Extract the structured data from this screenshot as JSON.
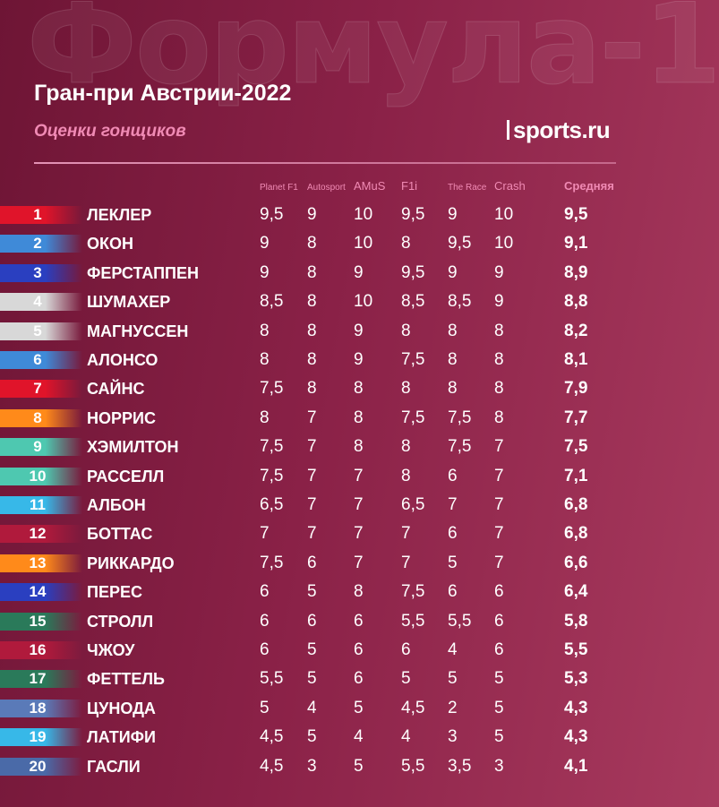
{
  "background_title": "Формула-1",
  "header": {
    "title": "Гран-при Австрии-2022",
    "subtitle": "Оценки гонщиков",
    "logo": "sports.ru"
  },
  "columns": [
    "Planet F1",
    "Autosport",
    "AMuS",
    "F1i",
    "The Race",
    "Crash",
    "Средняя"
  ],
  "rows": [
    {
      "pos": "1",
      "name": "ЛЕКЛЕР",
      "scores": [
        "9,5",
        "9",
        "10",
        "9,5",
        "9",
        "10"
      ],
      "avg": "9,5",
      "color": "#e0142a"
    },
    {
      "pos": "2",
      "name": "ОКОН",
      "scores": [
        "9",
        "8",
        "10",
        "8",
        "9,5",
        "10"
      ],
      "avg": "9,1",
      "color": "#3f8ad8"
    },
    {
      "pos": "3",
      "name": "ФЕРСТАППЕН",
      "scores": [
        "9",
        "8",
        "9",
        "9,5",
        "9",
        "9"
      ],
      "avg": "8,9",
      "color": "#2a3fc0"
    },
    {
      "pos": "4",
      "name": "ШУМАХЕР",
      "scores": [
        "8,5",
        "8",
        "10",
        "8,5",
        "8,5",
        "9"
      ],
      "avg": "8,8",
      "color": "#d8d8d8"
    },
    {
      "pos": "5",
      "name": "МАГНУССЕН",
      "scores": [
        "8",
        "8",
        "9",
        "8",
        "8",
        "8"
      ],
      "avg": "8,2",
      "color": "#d8d8d8"
    },
    {
      "pos": "6",
      "name": "АЛОНСО",
      "scores": [
        "8",
        "8",
        "9",
        "7,5",
        "8",
        "8"
      ],
      "avg": "8,1",
      "color": "#3f8ad8"
    },
    {
      "pos": "7",
      "name": "САЙНС",
      "scores": [
        "7,5",
        "8",
        "8",
        "8",
        "8",
        "8"
      ],
      "avg": "7,9",
      "color": "#e0142a"
    },
    {
      "pos": "8",
      "name": "НОРРИС",
      "scores": [
        "8",
        "7",
        "8",
        "7,5",
        "7,5",
        "8"
      ],
      "avg": "7,7",
      "color": "#ff8a1a"
    },
    {
      "pos": "9",
      "name": "ХЭМИЛТОН",
      "scores": [
        "7,5",
        "7",
        "8",
        "8",
        "7,5",
        "7"
      ],
      "avg": "7,5",
      "color": "#4ec8b0"
    },
    {
      "pos": "10",
      "name": "РАССЕЛЛ",
      "scores": [
        "7,5",
        "7",
        "7",
        "8",
        "6",
        "7"
      ],
      "avg": "7,1",
      "color": "#4ec8b0"
    },
    {
      "pos": "11",
      "name": "АЛБОН",
      "scores": [
        "6,5",
        "7",
        "7",
        "6,5",
        "7",
        "7"
      ],
      "avg": "6,8",
      "color": "#37b8e8"
    },
    {
      "pos": "12",
      "name": "БОТТАС",
      "scores": [
        "7",
        "7",
        "7",
        "7",
        "6",
        "7"
      ],
      "avg": "6,8",
      "color": "#b01a3c"
    },
    {
      "pos": "13",
      "name": "РИККАРДО",
      "scores": [
        "7,5",
        "6",
        "7",
        "7",
        "5",
        "7"
      ],
      "avg": "6,6",
      "color": "#ff8a1a"
    },
    {
      "pos": "14",
      "name": "ПЕРЕС",
      "scores": [
        "6",
        "5",
        "8",
        "7,5",
        "6",
        "6"
      ],
      "avg": "6,4",
      "color": "#2a3fc0"
    },
    {
      "pos": "15",
      "name": "СТРОЛЛ",
      "scores": [
        "6",
        "6",
        "6",
        "5,5",
        "5,5",
        "6"
      ],
      "avg": "5,8",
      "color": "#2a7a5a"
    },
    {
      "pos": "16",
      "name": "ЧЖОУ",
      "scores": [
        "6",
        "5",
        "6",
        "6",
        "4",
        "6"
      ],
      "avg": "5,5",
      "color": "#b01a3c"
    },
    {
      "pos": "17",
      "name": "ФЕТТЕЛЬ",
      "scores": [
        "5,5",
        "5",
        "6",
        "5",
        "5",
        "5"
      ],
      "avg": "5,3",
      "color": "#2a7a5a"
    },
    {
      "pos": "18",
      "name": "ЦУНОДА",
      "scores": [
        "5",
        "4",
        "5",
        "4,5",
        "2",
        "5"
      ],
      "avg": "4,3",
      "color": "#5a7ab8"
    },
    {
      "pos": "19",
      "name": "ЛАТИФИ",
      "scores": [
        "4,5",
        "5",
        "4",
        "4",
        "3",
        "5"
      ],
      "avg": "4,3",
      "color": "#37b8e8"
    },
    {
      "pos": "20",
      "name": "ГАСЛИ",
      "scores": [
        "4,5",
        "3",
        "5",
        "5,5",
        "3,5",
        "3"
      ],
      "avg": "4,1",
      "color": "#4a6aa8"
    }
  ]
}
